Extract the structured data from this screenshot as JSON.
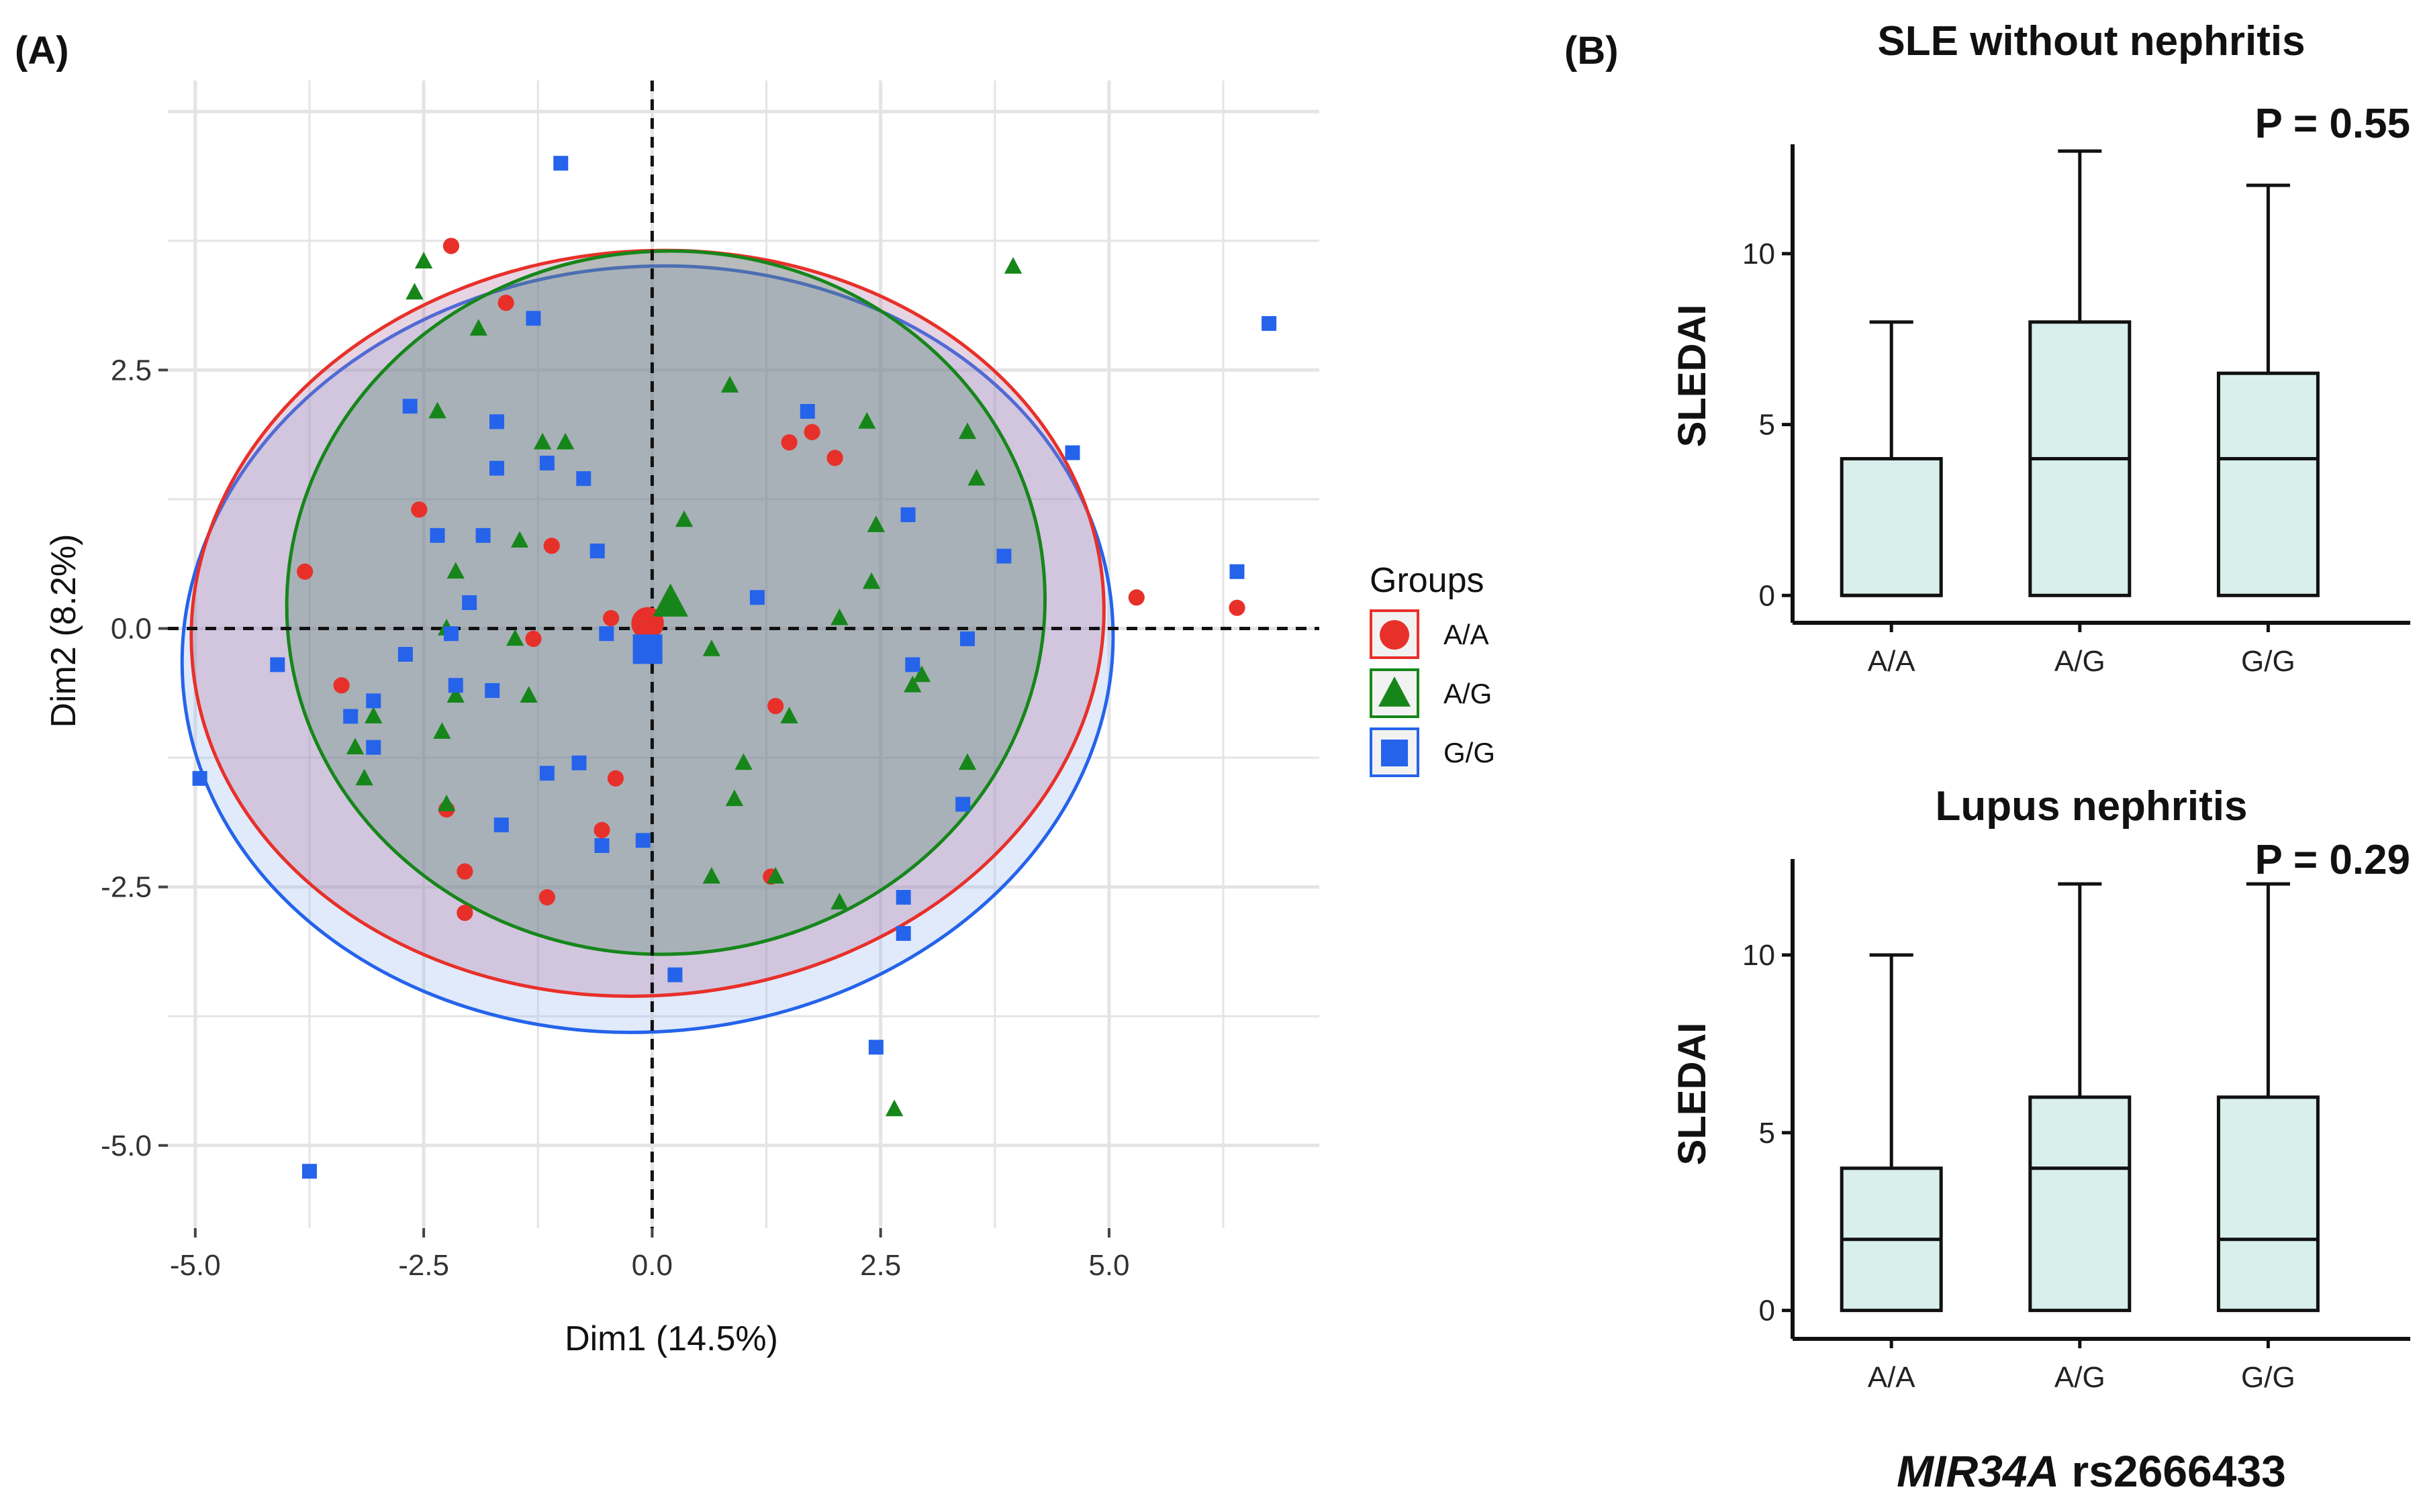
{
  "panel_a": {
    "label": "(A)",
    "chart_data": {
      "type": "scatter",
      "title": "",
      "xlabel": "Dim1 (14.5%)",
      "ylabel": "Dim2 (8.2%)",
      "xlim": [
        -5.3,
        7.3
      ],
      "ylim": [
        -5.8,
        5.3
      ],
      "xticks": [
        -5.0,
        -2.5,
        0.0,
        2.5,
        5.0
      ],
      "xtick_labels": [
        "-5.0",
        "-2.5",
        "0.0",
        "2.5",
        "5.0"
      ],
      "yticks": [
        -5.0,
        -2.5,
        0.0,
        2.5
      ],
      "ytick_labels": [
        "-5.0",
        "-2.5",
        "0.0",
        "2.5"
      ],
      "legend": {
        "title": "Groups",
        "position": "right",
        "entries": [
          {
            "name": "A/A",
            "color": "#e8302a",
            "shape": "circle"
          },
          {
            "name": "A/G",
            "color": "#16861a",
            "shape": "triangle"
          },
          {
            "name": "G/G",
            "color": "#2563eb",
            "shape": "square"
          }
        ]
      },
      "series": [
        {
          "name": "A/A",
          "color": "#e8302a",
          "shape": "circle",
          "centroid": [
            -0.05,
            0.03
          ],
          "ellipse": {
            "cx": -0.05,
            "cy": 0.05,
            "rx": 5.0,
            "ry": 3.6,
            "angle": -5
          },
          "points": [
            [
              -2.2,
              3.7
            ],
            [
              -1.6,
              3.15
            ],
            [
              -2.55,
              1.15
            ],
            [
              -1.1,
              0.8
            ],
            [
              -3.8,
              0.55
            ],
            [
              1.5,
              1.8
            ],
            [
              1.75,
              1.9
            ],
            [
              2.0,
              1.65
            ],
            [
              -0.45,
              0.1
            ],
            [
              -1.3,
              -0.1
            ],
            [
              -3.4,
              -0.55
            ],
            [
              1.35,
              -0.75
            ],
            [
              -2.25,
              -1.75
            ],
            [
              -0.4,
              -1.45
            ],
            [
              -0.55,
              -1.95
            ],
            [
              -2.05,
              -2.35
            ],
            [
              -1.15,
              -2.6
            ],
            [
              1.3,
              -2.4
            ],
            [
              -2.05,
              -2.75
            ],
            [
              5.3,
              0.3
            ],
            [
              6.4,
              0.2
            ],
            [
              -0.05,
              0.05
            ]
          ]
        },
        {
          "name": "A/G",
          "color": "#16861a",
          "shape": "triangle",
          "centroid": [
            0.15,
            0.25
          ],
          "ellipse": {
            "cx": 0.15,
            "cy": 0.25,
            "rx": 4.15,
            "ry": 3.4,
            "angle": -4
          },
          "points": [
            [
              -2.5,
              3.55
            ],
            [
              -2.6,
              3.25
            ],
            [
              -1.9,
              2.9
            ],
            [
              3.95,
              3.5
            ],
            [
              0.85,
              2.35
            ],
            [
              -2.35,
              2.1
            ],
            [
              -1.2,
              1.8
            ],
            [
              -0.95,
              1.8
            ],
            [
              2.35,
              2.0
            ],
            [
              3.45,
              1.9
            ],
            [
              3.55,
              1.45
            ],
            [
              0.35,
              1.05
            ],
            [
              2.45,
              1.0
            ],
            [
              -2.15,
              0.55
            ],
            [
              -1.45,
              0.85
            ],
            [
              2.4,
              0.45
            ],
            [
              -2.25,
              0.0
            ],
            [
              -1.5,
              -0.1
            ],
            [
              2.05,
              0.1
            ],
            [
              0.65,
              -0.2
            ],
            [
              -2.15,
              -0.65
            ],
            [
              -1.35,
              -0.65
            ],
            [
              -2.3,
              -1.0
            ],
            [
              -3.05,
              -0.85
            ],
            [
              -3.25,
              -1.15
            ],
            [
              -3.15,
              -1.45
            ],
            [
              1.5,
              -0.85
            ],
            [
              2.85,
              -0.55
            ],
            [
              2.95,
              -0.45
            ],
            [
              1.0,
              -1.3
            ],
            [
              0.9,
              -1.65
            ],
            [
              3.45,
              -1.3
            ],
            [
              -2.25,
              -1.7
            ],
            [
              0.65,
              -2.4
            ],
            [
              1.35,
              -2.4
            ],
            [
              2.05,
              -2.65
            ],
            [
              2.65,
              -4.65
            ],
            [
              0.2,
              0.25
            ]
          ]
        },
        {
          "name": "G/G",
          "color": "#2563eb",
          "shape": "square",
          "centroid": [
            -0.05,
            -0.2
          ],
          "ellipse": {
            "cx": -0.05,
            "cy": -0.2,
            "rx": 5.1,
            "ry": 3.7,
            "angle": -5
          },
          "points": [
            [
              -1.0,
              4.5
            ],
            [
              -1.3,
              3.0
            ],
            [
              6.75,
              2.95
            ],
            [
              -2.65,
              2.15
            ],
            [
              -1.7,
              2.0
            ],
            [
              1.7,
              2.1
            ],
            [
              4.6,
              1.7
            ],
            [
              -1.7,
              1.55
            ],
            [
              -1.15,
              1.6
            ],
            [
              -0.75,
              1.45
            ],
            [
              -2.35,
              0.9
            ],
            [
              -1.85,
              0.9
            ],
            [
              -0.6,
              0.75
            ],
            [
              2.8,
              1.1
            ],
            [
              3.85,
              0.7
            ],
            [
              6.4,
              0.55
            ],
            [
              -2.0,
              0.25
            ],
            [
              1.15,
              0.3
            ],
            [
              -2.2,
              -0.05
            ],
            [
              -0.5,
              -0.05
            ],
            [
              3.45,
              -0.1
            ],
            [
              -4.1,
              -0.35
            ],
            [
              -2.7,
              -0.25
            ],
            [
              -3.05,
              -0.7
            ],
            [
              -3.3,
              -0.85
            ],
            [
              -2.15,
              -0.55
            ],
            [
              -1.75,
              -0.6
            ],
            [
              2.85,
              -0.35
            ],
            [
              -3.05,
              -1.15
            ],
            [
              -1.15,
              -1.4
            ],
            [
              -0.8,
              -1.3
            ],
            [
              3.4,
              -1.7
            ],
            [
              -4.95,
              -1.45
            ],
            [
              -1.65,
              -1.9
            ],
            [
              -0.55,
              -2.1
            ],
            [
              -0.1,
              -2.05
            ],
            [
              2.75,
              -2.6
            ],
            [
              2.75,
              -2.95
            ],
            [
              0.25,
              -3.35
            ],
            [
              2.45,
              -4.05
            ],
            [
              -3.75,
              -5.25
            ],
            [
              -0.05,
              -0.2
            ]
          ]
        }
      ]
    }
  },
  "panel_b": {
    "label": "(B)",
    "x_footer_gene": "MIR34A",
    "x_footer_snp": " rs2666433",
    "chart_data": [
      {
        "type": "box",
        "title": "SLE without nephritis",
        "annotation": "P = 0.55",
        "xlabel": "",
        "ylabel": "SLEDAI",
        "ylim": [
          -0.8,
          13.2
        ],
        "yticks": [
          0,
          5,
          10
        ],
        "ytick_labels": [
          "0",
          "5",
          "10"
        ],
        "categories": [
          "A/A",
          "A/G",
          "G/G"
        ],
        "boxes": [
          {
            "min": 0,
            "q1": 0,
            "median": 0,
            "q3": 4,
            "max": 8
          },
          {
            "min": 0,
            "q1": 0,
            "median": 4,
            "q3": 8,
            "max": 13
          },
          {
            "min": 0,
            "q1": 0,
            "median": 4,
            "q3": 6.5,
            "max": 12
          }
        ]
      },
      {
        "type": "box",
        "title": "Lupus nephritis",
        "annotation": "P = 0.29",
        "xlabel": "",
        "ylabel": "SLEDAI",
        "ylim": [
          -0.8,
          12.7
        ],
        "yticks": [
          0,
          5,
          10
        ],
        "ytick_labels": [
          "0",
          "5",
          "10"
        ],
        "categories": [
          "A/A",
          "A/G",
          "G/G"
        ],
        "boxes": [
          {
            "min": 0,
            "q1": 0,
            "median": 2,
            "q3": 4,
            "max": 10
          },
          {
            "min": 0,
            "q1": 0,
            "median": 4,
            "q3": 6,
            "max": 12
          },
          {
            "min": 0,
            "q1": 0,
            "median": 2,
            "q3": 6,
            "max": 12
          }
        ]
      }
    ]
  },
  "colors": {
    "grid": "#e4e4e4",
    "box_fill": "#d9efeb",
    "ellipse_aa_fill": "#b07aa6",
    "ellipse_ag_fill": "#3d7a55",
    "ellipse_gg_fill": "#9fbdf0"
  }
}
